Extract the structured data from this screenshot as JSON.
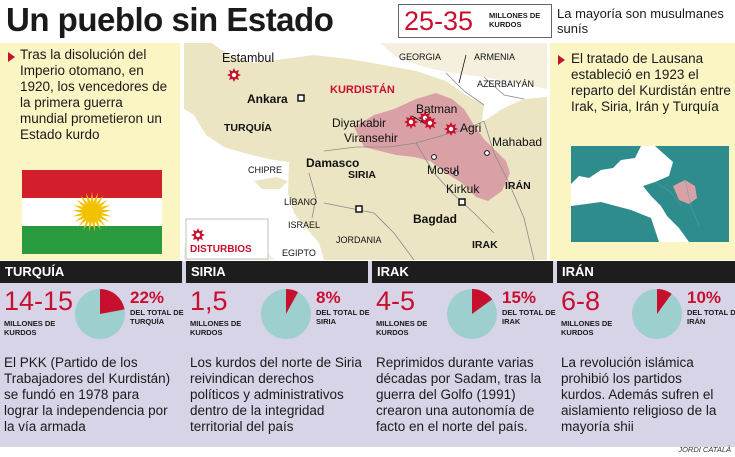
{
  "header": {
    "title": "Un pueblo sin Estado",
    "kurd_count": "25-35",
    "kurd_unit": "MILLONES DE KURDOS",
    "note": "La mayoría son musulmanes sunís"
  },
  "left_blurb": "Tras la disolución del Imperio otomano, en 1920, los vencedores de la primera guerra mundial prometieron un Estado kurdo",
  "right_blurb": "El tratado de Lausana estableció en 1923 el reparto del Kurdistán entre Irak, Siria, Irán y Turquía",
  "flag": {
    "colors": {
      "red": "#d31f2b",
      "white": "#ffffff",
      "green": "#2a9a3e",
      "sun": "#f2c200"
    }
  },
  "map": {
    "labels": {
      "estambul": "Estambul",
      "georgia": "GEORGIA",
      "armenia": "ARMENIA",
      "azerbaiyan": "AZERBAIYÁN",
      "kurdistan": "KURDISTÁN",
      "ankara": "Ankara",
      "turquia": "TURQUÍA",
      "batman": "Batman",
      "diyarkabir": "Diyarkabir",
      "viransehir": "Viransehir",
      "agri": "Agri",
      "mahabad": "Mahabad",
      "chipre": "CHIPRE",
      "siria": "SIRIA",
      "mosul": "Mosul",
      "kirkuk": "Kirkuk",
      "iran": "IRÁN",
      "libano": "LÍBANO",
      "damasco": "Damasco",
      "israel": "ISRAEL",
      "bagdad": "Bagdad",
      "jordania": "JORDANIA",
      "irak": "IRAK",
      "egipto": "EGIPTO"
    },
    "legend": "DISTURBIOS",
    "colors": {
      "land": "#ece5c4",
      "sea": "#ffffff",
      "kurdistan": "#d9a1a6",
      "unrest": "#c8102e",
      "neighbour": "#f5f0dd"
    }
  },
  "sections": [
    {
      "name": "TURQUÍA",
      "kurds": "14-15",
      "kurd_unit": "MILLONES DE KURDOS",
      "pct_label": "22%",
      "share": 0.22,
      "pct_sub": "DEL TOTAL DE TURQUÍA",
      "text": "El PKK (Partido de los Trabajadores del Kurdistán) se fundó en 1978 para lograr la independencia por la vía armada"
    },
    {
      "name": "SIRIA",
      "kurds": "1,5",
      "kurd_unit": "MILLONES DE KURDOS",
      "pct_label": "8%",
      "share": 0.08,
      "pct_sub": "DEL TOTAL DE SIRIA",
      "text": "Los kurdos del norte de Siria reivindican derechos políticos y administrativos dentro de la integridad territorial del país"
    },
    {
      "name": "IRAK",
      "kurds": "4-5",
      "kurd_unit": "MILLONES DE KURDOS",
      "pct_label": "15%",
      "share": 0.15,
      "pct_sub": "DEL TOTAL DE IRAK",
      "text": "Reprimidos durante varias décadas por Sadam, tras la guerra del Golfo (1991) crearon una autonomía de facto en el norte del país."
    },
    {
      "name": "IRÁN",
      "kurds": "6-8",
      "kurd_unit": "MILLONES DE KURDOS",
      "pct_label": "10%",
      "share": 0.1,
      "pct_sub": "DEL TOTAL DE IRÁN",
      "text": "La revolución islámica prohibió los partidos kurdos. Además sufren el aislamiento religioso de la mayoría shii"
    }
  ],
  "pie_colors": {
    "rest": "#9ecfcf",
    "kurds": "#c8102e"
  },
  "credit": "JORDI CATALÀ"
}
